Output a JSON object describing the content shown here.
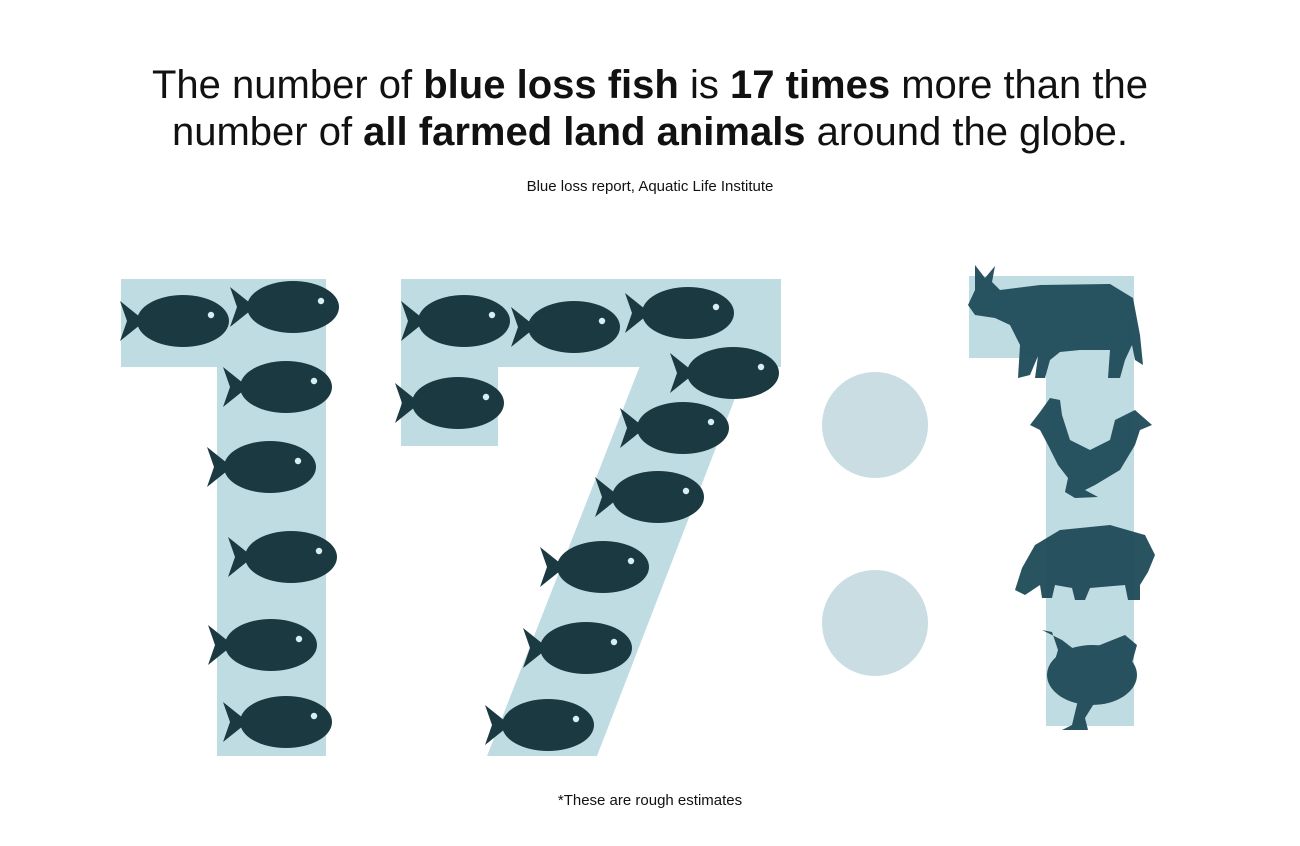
{
  "header": {
    "title_lines": [
      [
        {
          "text": "The number of ",
          "bold": false
        },
        {
          "text": "blue loss fish",
          "bold": true
        },
        {
          "text": " is ",
          "bold": false
        },
        {
          "text": "17 times",
          "bold": true
        },
        {
          "text": " more than the",
          "bold": false
        }
      ],
      [
        {
          "text": "number of ",
          "bold": false
        },
        {
          "text": "all farmed land animals",
          "bold": true
        },
        {
          "text": " around the globe.",
          "bold": false
        }
      ]
    ],
    "source": "Blue loss report, Aquatic Life Institute"
  },
  "footnote": "*These are rough estimates"
}
